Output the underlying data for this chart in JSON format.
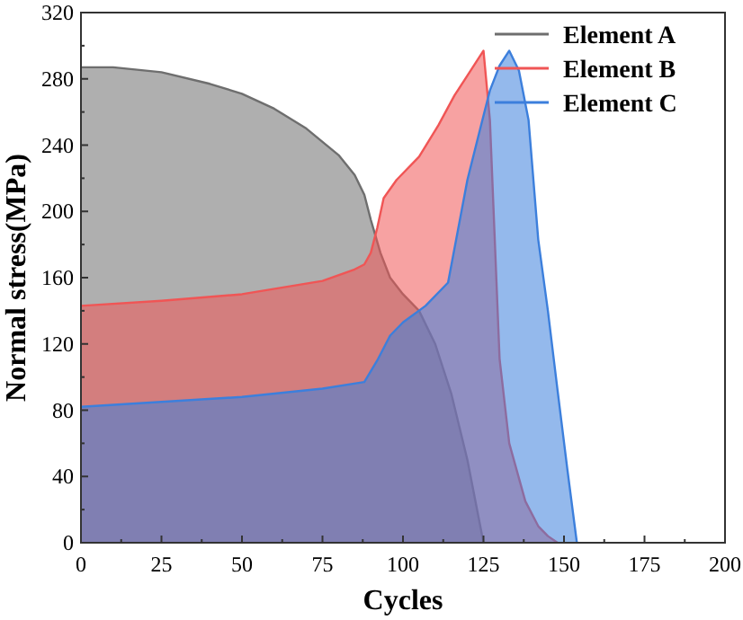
{
  "chart_data": {
    "type": "area",
    "xlabel": "Cycles",
    "ylabel": "Normal stress(MPa)",
    "xlim": [
      0,
      200
    ],
    "xticks": [
      0,
      25,
      50,
      75,
      100,
      125,
      150,
      175,
      200
    ],
    "ylim": [
      0,
      320
    ],
    "yticks": [
      0,
      40,
      80,
      120,
      160,
      200,
      240,
      280,
      320
    ],
    "grid": false,
    "legend": "top right",
    "series": [
      {
        "name": "Element A",
        "color": "#6e6e6e",
        "x": [
          0,
          10,
          25,
          40,
          50,
          60,
          70,
          80,
          85,
          88,
          90,
          93,
          96,
          100,
          105,
          110,
          115,
          120,
          124,
          125
        ],
        "values": [
          287,
          287,
          284,
          277,
          271,
          262,
          250,
          234,
          222,
          210,
          195,
          175,
          160,
          150,
          140,
          120,
          90,
          50,
          10,
          0
        ]
      },
      {
        "name": "Element B",
        "color": "#f05555",
        "x": [
          0,
          25,
          50,
          75,
          85,
          88,
          90,
          92,
          94,
          98,
          105,
          111,
          116,
          120,
          125,
          127,
          130,
          133,
          138,
          142,
          145,
          148
        ],
        "values": [
          143,
          146,
          150,
          158,
          165,
          168,
          175,
          190,
          208,
          219,
          233,
          252,
          270,
          282,
          297,
          255,
          111,
          60,
          25,
          10,
          4,
          0
        ]
      },
      {
        "name": "Element C",
        "color": "#3c7fdc",
        "x": [
          0,
          25,
          50,
          75,
          88,
          92,
          96,
          100,
          107,
          114,
          120,
          124,
          127,
          130,
          133,
          136,
          139,
          142,
          145,
          148,
          151,
          154
        ],
        "values": [
          82,
          85,
          88,
          93,
          97,
          110,
          125,
          133,
          143,
          157,
          219,
          250,
          273,
          288,
          297,
          285,
          255,
          183,
          140,
          92,
          45,
          0
        ]
      }
    ]
  }
}
